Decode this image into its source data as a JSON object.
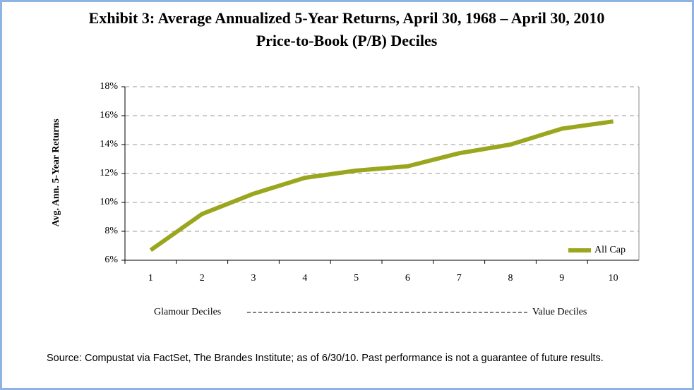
{
  "chart_data": {
    "type": "line",
    "title": "Exhibit 3: Average Annualized 5-Year Returns, April 30, 1968 – April 30, 2010",
    "subtitle": "Price-to-Book (P/B) Deciles",
    "y_label": "Avg. Ann. 5-Year Returns",
    "x_label_left": "Glamour Deciles",
    "x_label_right": "Value Deciles",
    "source": "Source:  Compustat via FactSet, The Brandes Institute; as of 6/30/10. Past performance is not a guarantee of future results.",
    "categories": [
      "1",
      "2",
      "3",
      "4",
      "5",
      "6",
      "7",
      "8",
      "9",
      "10"
    ],
    "series": [
      {
        "name": "All Cap",
        "color": "#9aa61e",
        "values": [
          6.7,
          9.2,
          10.6,
          11.7,
          12.2,
          12.5,
          13.4,
          14.0,
          15.1,
          15.6
        ]
      }
    ],
    "ylim": [
      6,
      18
    ],
    "yticks": [
      {
        "value": 6,
        "label": "6%"
      },
      {
        "value": 8,
        "label": "8%"
      },
      {
        "value": 10,
        "label": "10%"
      },
      {
        "value": 12,
        "label": "12%"
      },
      {
        "value": 14,
        "label": "14%"
      },
      {
        "value": 16,
        "label": "16%"
      },
      {
        "value": 18,
        "label": "18%"
      }
    ],
    "grid": true,
    "legend": "lower right"
  }
}
